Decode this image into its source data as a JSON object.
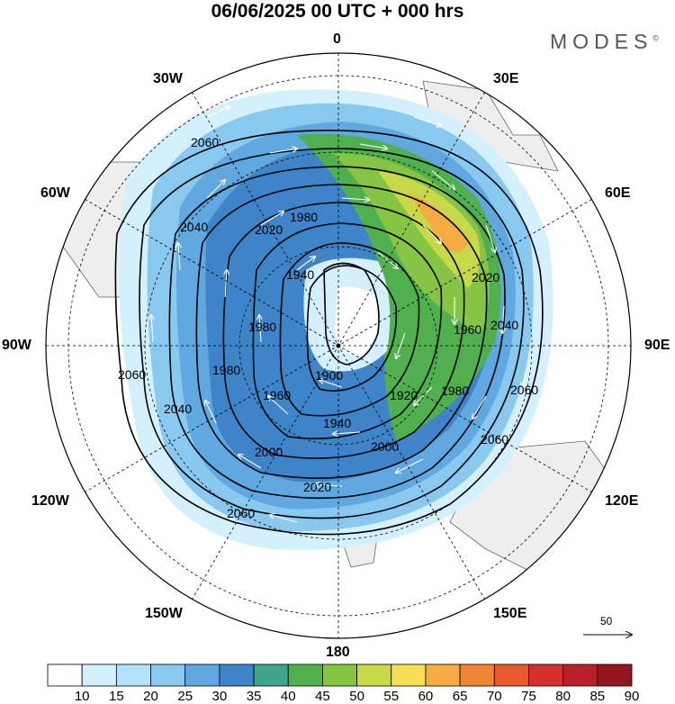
{
  "title": "06/06/2025  00 UTC  + 000 hrs",
  "brand": "MODES",
  "brand_mark": "©",
  "map": {
    "projection": "polar-stereographic-south",
    "longitude_labels": {
      "top": "0",
      "bottom": "180",
      "upper_left": "30W",
      "upper_right": "30E",
      "left_upper": "60W",
      "right_upper": "60E",
      "left": "90W",
      "right": "90E",
      "left_lower": "120W",
      "right_lower": "120E",
      "lower_left": "150W",
      "lower_right": "150E"
    },
    "contour_labels": [
      "2060",
      "2040",
      "1980",
      "1940",
      "2020",
      "1980",
      "2020",
      "1960",
      "2040",
      "1980",
      "1900",
      "1920",
      "1960",
      "1980",
      "1940",
      "2000",
      "2060",
      "2020",
      "2060",
      "2000",
      "2060",
      "2040",
      "2060"
    ],
    "reference_vector": "50"
  },
  "colorbar": {
    "ticks": [
      "10",
      "15",
      "20",
      "25",
      "30",
      "35",
      "40",
      "45",
      "50",
      "55",
      "60",
      "65",
      "70",
      "75",
      "80",
      "85",
      "90"
    ],
    "colors": [
      "#ffffff",
      "#d4f0fd",
      "#b2e3f9",
      "#89c9ef",
      "#5fa8e0",
      "#3d84c9",
      "#3da58a",
      "#4fb04d",
      "#86c443",
      "#c7d948",
      "#f6df55",
      "#f6ac42",
      "#f08633",
      "#e65a2e",
      "#d6302d",
      "#b81f29",
      "#94161f"
    ]
  }
}
